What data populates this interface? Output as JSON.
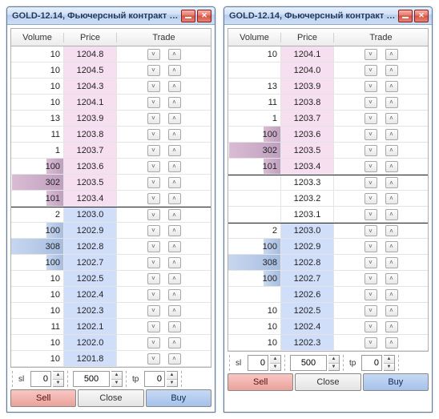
{
  "windows": [
    {
      "title": "GOLD-12.14, Фьючерсный контракт G...",
      "headers": {
        "volume": "Volume",
        "price": "Price",
        "trade": "Trade"
      },
      "ask_color": "#f6dff0",
      "bid_color": "#d0defa",
      "vol_bar_ask": "linear-gradient(to right,#d9bcd4,#bfa0bf)",
      "vol_bar_bid": "linear-gradient(to right,#c7d7ef,#a7bde0)",
      "max_bar_vol": 308,
      "rows": [
        {
          "vol": 10,
          "price": "1204.8",
          "side": "ask",
          "bar": 0
        },
        {
          "vol": 10,
          "price": "1204.5",
          "side": "ask",
          "bar": 0
        },
        {
          "vol": 10,
          "price": "1204.3",
          "side": "ask",
          "bar": 0
        },
        {
          "vol": 10,
          "price": "1204.1",
          "side": "ask",
          "bar": 0
        },
        {
          "vol": 13,
          "price": "1203.9",
          "side": "ask",
          "bar": 0
        },
        {
          "vol": 11,
          "price": "1203.8",
          "side": "ask",
          "bar": 0
        },
        {
          "vol": 1,
          "price": "1203.7",
          "side": "ask",
          "bar": 0
        },
        {
          "vol": 100,
          "price": "1203.6",
          "side": "ask",
          "bar": 100
        },
        {
          "vol": 302,
          "price": "1203.5",
          "side": "ask",
          "bar": 302
        },
        {
          "vol": 101,
          "price": "1203.4",
          "side": "ask",
          "bar": 101
        },
        {
          "vol": 2,
          "price": "1203.0",
          "side": "bid",
          "bar": 0,
          "divider": true
        },
        {
          "vol": 100,
          "price": "1202.9",
          "side": "bid",
          "bar": 100
        },
        {
          "vol": 308,
          "price": "1202.8",
          "side": "bid",
          "bar": 308
        },
        {
          "vol": 100,
          "price": "1202.7",
          "side": "bid",
          "bar": 100
        },
        {
          "vol": 10,
          "price": "1202.5",
          "side": "bid",
          "bar": 0
        },
        {
          "vol": 10,
          "price": "1202.4",
          "side": "bid",
          "bar": 0
        },
        {
          "vol": 10,
          "price": "1202.3",
          "side": "bid",
          "bar": 0
        },
        {
          "vol": 11,
          "price": "1202.1",
          "side": "bid",
          "bar": 0
        },
        {
          "vol": 10,
          "price": "1202.0",
          "side": "bid",
          "bar": 0
        },
        {
          "vol": 10,
          "price": "1201.8",
          "side": "bid",
          "bar": 0
        }
      ],
      "footer": {
        "sl_label": "sl",
        "sl": "0",
        "qty": "500",
        "tp_label": "tp",
        "tp": "0",
        "sell": "Sell",
        "close": "Close",
        "buy": "Buy"
      }
    },
    {
      "title": "GOLD-12.14, Фьючерсный контракт G...",
      "headers": {
        "volume": "Volume",
        "price": "Price",
        "trade": "Trade"
      },
      "ask_color": "#f6dff0",
      "bid_color": "#d0defa",
      "vol_bar_ask": "linear-gradient(to right,#d9bcd4,#bfa0bf)",
      "vol_bar_bid": "linear-gradient(to right,#c7d7ef,#a7bde0)",
      "max_bar_vol": 308,
      "rows": [
        {
          "vol": 10,
          "price": "1204.1",
          "side": "ask",
          "bar": 0
        },
        {
          "vol": "",
          "price": "1204.0",
          "side": "ask",
          "bar": 0
        },
        {
          "vol": 13,
          "price": "1203.9",
          "side": "ask",
          "bar": 0
        },
        {
          "vol": 11,
          "price": "1203.8",
          "side": "ask",
          "bar": 0
        },
        {
          "vol": 1,
          "price": "1203.7",
          "side": "ask",
          "bar": 0
        },
        {
          "vol": 100,
          "price": "1203.6",
          "side": "ask",
          "bar": 100
        },
        {
          "vol": 302,
          "price": "1203.5",
          "side": "ask",
          "bar": 302
        },
        {
          "vol": 101,
          "price": "1203.4",
          "side": "ask",
          "bar": 101
        },
        {
          "vol": "",
          "price": "1203.3",
          "side": "none",
          "bar": 0,
          "divider": true
        },
        {
          "vol": "",
          "price": "1203.2",
          "side": "none",
          "bar": 0
        },
        {
          "vol": "",
          "price": "1203.1",
          "side": "none",
          "bar": 0
        },
        {
          "vol": 2,
          "price": "1203.0",
          "side": "bid",
          "bar": 0,
          "divider": true
        },
        {
          "vol": 100,
          "price": "1202.9",
          "side": "bid",
          "bar": 100
        },
        {
          "vol": 308,
          "price": "1202.8",
          "side": "bid",
          "bar": 308
        },
        {
          "vol": 100,
          "price": "1202.7",
          "side": "bid",
          "bar": 100
        },
        {
          "vol": "",
          "price": "1202.6",
          "side": "bid",
          "bar": 0
        },
        {
          "vol": 10,
          "price": "1202.5",
          "side": "bid",
          "bar": 0
        },
        {
          "vol": 10,
          "price": "1202.4",
          "side": "bid",
          "bar": 0
        },
        {
          "vol": 10,
          "price": "1202.3",
          "side": "bid",
          "bar": 0
        }
      ],
      "footer": {
        "sl_label": "sl",
        "sl": "0",
        "qty": "500",
        "tp_label": "tp",
        "tp": "0",
        "sell": "Sell",
        "close": "Close",
        "buy": "Buy"
      }
    }
  ]
}
